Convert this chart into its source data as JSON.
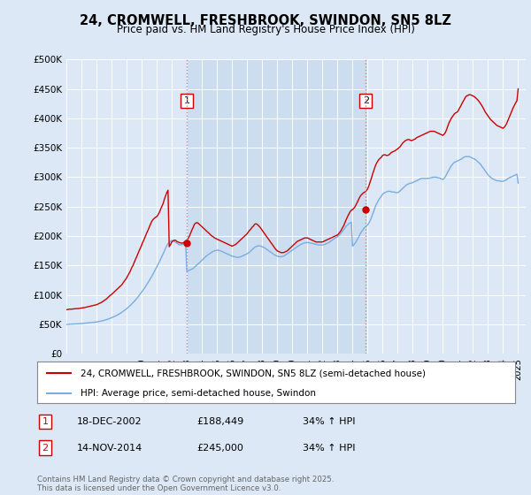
{
  "title": "24, CROMWELL, FRESHBROOK, SWINDON, SN5 8LZ",
  "subtitle": "Price paid vs. HM Land Registry's House Price Index (HPI)",
  "background_color": "#dce8f5",
  "plot_bg_color": "#dce8f5",
  "shade_color": "#ccddf0",
  "ylabel": "",
  "ylim": [
    0,
    500000
  ],
  "yticks": [
    0,
    50000,
    100000,
    150000,
    200000,
    250000,
    300000,
    350000,
    400000,
    450000,
    500000
  ],
  "ytick_labels": [
    "£0",
    "£50K",
    "£100K",
    "£150K",
    "£200K",
    "£250K",
    "£300K",
    "£350K",
    "£400K",
    "£450K",
    "£500K"
  ],
  "red_line_color": "#cc0000",
  "blue_line_color": "#7aade0",
  "vline_color": "#e08080",
  "marker1_year": 2003.0,
  "marker2_year": 2014.88,
  "marker1_price": 188449,
  "marker2_price": 245000,
  "legend_label_red": "24, CROMWELL, FRESHBROOK, SWINDON, SN5 8LZ (semi-detached house)",
  "legend_label_blue": "HPI: Average price, semi-detached house, Swindon",
  "annotation1": "1",
  "annotation2": "2",
  "footer_text": "Contains HM Land Registry data © Crown copyright and database right 2025.\nThis data is licensed under the Open Government Licence v3.0.",
  "table_row1": [
    "1",
    "18-DEC-2002",
    "£188,449",
    "34% ↑ HPI"
  ],
  "table_row2": [
    "2",
    "14-NOV-2014",
    "£245,000",
    "34% ↑ HPI"
  ],
  "red_x": [
    1995.0,
    1995.08,
    1995.17,
    1995.25,
    1995.33,
    1995.42,
    1995.5,
    1995.58,
    1995.67,
    1995.75,
    1995.83,
    1995.92,
    1996.0,
    1996.08,
    1996.17,
    1996.25,
    1996.33,
    1996.42,
    1996.5,
    1996.58,
    1996.67,
    1996.75,
    1996.83,
    1996.92,
    1997.0,
    1997.08,
    1997.17,
    1997.25,
    1997.33,
    1997.42,
    1997.5,
    1997.58,
    1997.67,
    1997.75,
    1997.83,
    1997.92,
    1998.0,
    1998.08,
    1998.17,
    1998.25,
    1998.33,
    1998.42,
    1998.5,
    1998.58,
    1998.67,
    1998.75,
    1998.83,
    1998.92,
    1999.0,
    1999.08,
    1999.17,
    1999.25,
    1999.33,
    1999.42,
    1999.5,
    1999.58,
    1999.67,
    1999.75,
    1999.83,
    1999.92,
    2000.0,
    2000.08,
    2000.17,
    2000.25,
    2000.33,
    2000.42,
    2000.5,
    2000.58,
    2000.67,
    2000.75,
    2000.83,
    2000.92,
    2001.0,
    2001.08,
    2001.17,
    2001.25,
    2001.33,
    2001.42,
    2001.5,
    2001.58,
    2001.67,
    2001.75,
    2001.83,
    2001.92,
    2002.0,
    2002.08,
    2002.17,
    2002.25,
    2002.33,
    2002.42,
    2002.5,
    2002.58,
    2002.67,
    2002.75,
    2002.83,
    2002.92,
    2003.0,
    2003.08,
    2003.17,
    2003.25,
    2003.33,
    2003.42,
    2003.5,
    2003.58,
    2003.67,
    2003.75,
    2003.83,
    2003.92,
    2004.0,
    2004.08,
    2004.17,
    2004.25,
    2004.33,
    2004.42,
    2004.5,
    2004.58,
    2004.67,
    2004.75,
    2004.83,
    2004.92,
    2005.0,
    2005.08,
    2005.17,
    2005.25,
    2005.33,
    2005.42,
    2005.5,
    2005.58,
    2005.67,
    2005.75,
    2005.83,
    2005.92,
    2006.0,
    2006.08,
    2006.17,
    2006.25,
    2006.33,
    2006.42,
    2006.5,
    2006.58,
    2006.67,
    2006.75,
    2006.83,
    2006.92,
    2007.0,
    2007.08,
    2007.17,
    2007.25,
    2007.33,
    2007.42,
    2007.5,
    2007.58,
    2007.67,
    2007.75,
    2007.83,
    2007.92,
    2008.0,
    2008.08,
    2008.17,
    2008.25,
    2008.33,
    2008.42,
    2008.5,
    2008.58,
    2008.67,
    2008.75,
    2008.83,
    2008.92,
    2009.0,
    2009.08,
    2009.17,
    2009.25,
    2009.33,
    2009.42,
    2009.5,
    2009.58,
    2009.67,
    2009.75,
    2009.83,
    2009.92,
    2010.0,
    2010.08,
    2010.17,
    2010.25,
    2010.33,
    2010.42,
    2010.5,
    2010.58,
    2010.67,
    2010.75,
    2010.83,
    2010.92,
    2011.0,
    2011.08,
    2011.17,
    2011.25,
    2011.33,
    2011.42,
    2011.5,
    2011.58,
    2011.67,
    2011.75,
    2011.83,
    2011.92,
    2012.0,
    2012.08,
    2012.17,
    2012.25,
    2012.33,
    2012.42,
    2012.5,
    2012.58,
    2012.67,
    2012.75,
    2012.83,
    2012.92,
    2013.0,
    2013.08,
    2013.17,
    2013.25,
    2013.33,
    2013.42,
    2013.5,
    2013.58,
    2013.67,
    2013.75,
    2013.83,
    2013.92,
    2014.0,
    2014.08,
    2014.17,
    2014.25,
    2014.33,
    2014.42,
    2014.5,
    2014.58,
    2014.67,
    2014.75,
    2014.83,
    2014.92,
    2015.0,
    2015.08,
    2015.17,
    2015.25,
    2015.33,
    2015.42,
    2015.5,
    2015.58,
    2015.67,
    2015.75,
    2015.83,
    2015.92,
    2016.0,
    2016.08,
    2016.17,
    2016.25,
    2016.33,
    2016.42,
    2016.5,
    2016.58,
    2016.67,
    2016.75,
    2016.83,
    2016.92,
    2017.0,
    2017.08,
    2017.17,
    2017.25,
    2017.33,
    2017.42,
    2017.5,
    2017.58,
    2017.67,
    2017.75,
    2017.83,
    2017.92,
    2018.0,
    2018.08,
    2018.17,
    2018.25,
    2018.33,
    2018.42,
    2018.5,
    2018.58,
    2018.67,
    2018.75,
    2018.83,
    2018.92,
    2019.0,
    2019.08,
    2019.17,
    2019.25,
    2019.33,
    2019.42,
    2019.5,
    2019.58,
    2019.67,
    2019.75,
    2019.83,
    2019.92,
    2020.0,
    2020.08,
    2020.17,
    2020.25,
    2020.33,
    2020.42,
    2020.5,
    2020.58,
    2020.67,
    2020.75,
    2020.83,
    2020.92,
    2021.0,
    2021.08,
    2021.17,
    2021.25,
    2021.33,
    2021.42,
    2021.5,
    2021.58,
    2021.67,
    2021.75,
    2021.83,
    2021.92,
    2022.0,
    2022.08,
    2022.17,
    2022.25,
    2022.33,
    2022.42,
    2022.5,
    2022.58,
    2022.67,
    2022.75,
    2022.83,
    2022.92,
    2023.0,
    2023.08,
    2023.17,
    2023.25,
    2023.33,
    2023.42,
    2023.5,
    2023.58,
    2023.67,
    2023.75,
    2023.83,
    2023.92,
    2024.0,
    2024.08,
    2024.17,
    2024.25,
    2024.33,
    2024.42,
    2024.5,
    2024.58,
    2024.67,
    2024.75,
    2024.83,
    2024.92,
    2025.0
  ],
  "red_y": [
    75000,
    75500,
    75800,
    76000,
    76000,
    76200,
    76500,
    76800,
    77000,
    77000,
    77200,
    77500,
    78000,
    78200,
    78500,
    79000,
    79500,
    80000,
    80500,
    81000,
    81500,
    82000,
    82500,
    83000,
    83500,
    84500,
    85500,
    86500,
    87500,
    89000,
    90500,
    92000,
    93500,
    95500,
    97500,
    99500,
    101000,
    103000,
    105000,
    107000,
    109000,
    111000,
    113000,
    115000,
    117000,
    120000,
    123000,
    126000,
    129000,
    133000,
    137000,
    141000,
    146000,
    150000,
    155000,
    160000,
    165000,
    170000,
    175000,
    180000,
    185000,
    190000,
    195000,
    200000,
    205000,
    210000,
    215000,
    220000,
    225000,
    228000,
    230000,
    232000,
    233000,
    236000,
    240000,
    245000,
    250000,
    255000,
    262000,
    268000,
    274000,
    278000,
    182000,
    186000,
    190000,
    192000,
    193000,
    193000,
    191000,
    190000,
    189000,
    188449,
    188000,
    188500,
    190000,
    192000,
    193000,
    196000,
    200000,
    205000,
    210000,
    215000,
    220000,
    222000,
    223000,
    222000,
    220000,
    218000,
    216000,
    214000,
    212000,
    210000,
    208000,
    206000,
    204000,
    202000,
    200000,
    199000,
    197000,
    196000,
    195000,
    194000,
    193000,
    192000,
    191000,
    190000,
    189000,
    188000,
    187000,
    186000,
    185000,
    184000,
    183000,
    184000,
    185000,
    186000,
    188000,
    190000,
    192000,
    194000,
    196000,
    198000,
    200000,
    202000,
    204000,
    207000,
    210000,
    212000,
    215000,
    217000,
    220000,
    221000,
    220000,
    218000,
    216000,
    213000,
    210000,
    207000,
    204000,
    201000,
    198000,
    195000,
    192000,
    189000,
    186000,
    183000,
    180000,
    177000,
    175000,
    174000,
    173000,
    172000,
    172000,
    172000,
    173000,
    174000,
    175000,
    177000,
    179000,
    181000,
    183000,
    185000,
    187000,
    189000,
    191000,
    192000,
    193000,
    194000,
    195000,
    196000,
    197000,
    197000,
    197000,
    196000,
    195000,
    194000,
    193000,
    192000,
    191000,
    190000,
    190000,
    190000,
    190000,
    190000,
    190000,
    191000,
    192000,
    193000,
    194000,
    195000,
    196000,
    197000,
    198000,
    199000,
    200000,
    201000,
    202000,
    204000,
    207000,
    210000,
    214000,
    218000,
    223000,
    228000,
    233000,
    237000,
    241000,
    244000,
    245000,
    247000,
    250000,
    254000,
    258000,
    263000,
    267000,
    270000,
    272000,
    274000,
    275000,
    277000,
    280000,
    285000,
    292000,
    298000,
    305000,
    312000,
    318000,
    323000,
    327000,
    330000,
    332000,
    334000,
    337000,
    338000,
    338000,
    337000,
    337000,
    338000,
    340000,
    342000,
    343000,
    344000,
    345000,
    347000,
    348000,
    350000,
    352000,
    355000,
    358000,
    360000,
    362000,
    363000,
    364000,
    364000,
    363000,
    362000,
    363000,
    364000,
    365000,
    367000,
    368000,
    369000,
    370000,
    371000,
    372000,
    373000,
    374000,
    375000,
    376000,
    377000,
    378000,
    378000,
    378000,
    378000,
    377000,
    376000,
    375000,
    374000,
    373000,
    372000,
    371000,
    373000,
    376000,
    381000,
    387000,
    393000,
    397000,
    401000,
    404000,
    407000,
    409000,
    410000,
    412000,
    416000,
    420000,
    424000,
    428000,
    432000,
    436000,
    438000,
    439000,
    440000,
    440000,
    439000,
    438000,
    437000,
    435000,
    433000,
    431000,
    428000,
    425000,
    422000,
    418000,
    414000,
    410000,
    407000,
    404000,
    401000,
    398000,
    396000,
    394000,
    392000,
    390000,
    388000,
    387000,
    386000,
    385000,
    384000,
    383000,
    385000,
    388000,
    392000,
    397000,
    403000,
    408000,
    413000,
    418000,
    422000,
    426000,
    430000,
    450000
  ],
  "blue_y": [
    50000,
    50200,
    50400,
    50500,
    50600,
    50700,
    50800,
    50900,
    51000,
    51100,
    51200,
    51400,
    51600,
    51800,
    52000,
    52200,
    52400,
    52600,
    52800,
    53000,
    53200,
    53400,
    53600,
    53900,
    54200,
    54600,
    55000,
    55400,
    55900,
    56400,
    57000,
    57600,
    58300,
    59000,
    59800,
    60600,
    61500,
    62400,
    63300,
    64300,
    65400,
    66500,
    67700,
    69000,
    70400,
    71900,
    73400,
    75000,
    76700,
    78500,
    80400,
    82400,
    84500,
    86700,
    89000,
    91400,
    93900,
    96500,
    99200,
    102000,
    104900,
    107900,
    111000,
    114200,
    117500,
    120900,
    124400,
    128000,
    131700,
    135500,
    139400,
    143400,
    147500,
    151700,
    156000,
    160400,
    164900,
    169500,
    174200,
    179000,
    183900,
    187000,
    189500,
    191500,
    192500,
    192000,
    191000,
    189500,
    188000,
    186500,
    185500,
    185000,
    185500,
    186000,
    187000,
    188000,
    140000,
    141000,
    142000,
    143000,
    144000,
    145000,
    147000,
    149000,
    151000,
    153000,
    155000,
    157000,
    159000,
    161000,
    163000,
    165000,
    167000,
    168500,
    170000,
    171500,
    173000,
    174000,
    175000,
    175500,
    176000,
    176000,
    175500,
    175000,
    174000,
    173000,
    172000,
    171000,
    170000,
    169000,
    168000,
    167000,
    166000,
    165500,
    165000,
    164500,
    164000,
    164000,
    164500,
    165000,
    166000,
    167000,
    168000,
    169000,
    170000,
    171500,
    173000,
    175000,
    177000,
    179000,
    181000,
    182000,
    183000,
    183500,
    183500,
    183000,
    182000,
    181000,
    180000,
    178500,
    177000,
    175500,
    174000,
    172500,
    171000,
    169500,
    168000,
    167000,
    166000,
    165500,
    165000,
    165000,
    165500,
    166000,
    167000,
    168500,
    170000,
    171500,
    173000,
    174500,
    176000,
    177500,
    179000,
    180500,
    182000,
    183500,
    185000,
    186000,
    187000,
    188000,
    188500,
    189000,
    189000,
    189000,
    188500,
    188000,
    187500,
    187000,
    186500,
    186000,
    185500,
    185000,
    185000,
    185000,
    185000,
    185500,
    186000,
    187000,
    188000,
    189000,
    190500,
    192000,
    193500,
    195000,
    196500,
    198000,
    199000,
    201000,
    203000,
    205500,
    208000,
    211000,
    214000,
    217000,
    219000,
    221000,
    222500,
    223500,
    183000,
    185000,
    188000,
    191000,
    195000,
    199000,
    203000,
    207000,
    210000,
    213000,
    215000,
    217000,
    219000,
    222000,
    226000,
    231000,
    237000,
    243000,
    249000,
    254000,
    258000,
    262000,
    265000,
    268000,
    271000,
    273000,
    274000,
    275000,
    276000,
    276000,
    276000,
    275000,
    275000,
    275000,
    274000,
    274000,
    274000,
    275000,
    277000,
    279000,
    281000,
    283000,
    285000,
    287000,
    288000,
    289000,
    290000,
    290000,
    291000,
    292000,
    293000,
    294000,
    295000,
    296000,
    297000,
    298000,
    298000,
    298000,
    298000,
    298000,
    298000,
    298000,
    299000,
    299000,
    300000,
    300000,
    300000,
    300000,
    299000,
    299000,
    298000,
    297000,
    296000,
    298000,
    301000,
    305000,
    309000,
    313000,
    317000,
    320000,
    323000,
    325000,
    326000,
    327000,
    328000,
    329000,
    330000,
    331000,
    333000,
    334000,
    335000,
    335000,
    335000,
    335000,
    334000,
    333000,
    332000,
    331000,
    330000,
    328000,
    326000,
    324000,
    322000,
    319000,
    316000,
    313000,
    310000,
    307000,
    304000,
    302000,
    300000,
    298000,
    297000,
    296000,
    295000,
    294000,
    294000,
    294000,
    293000,
    293000,
    293000,
    294000,
    295000,
    296000,
    298000,
    299000,
    300000,
    301000,
    302000,
    303000,
    304000,
    305000,
    290000
  ]
}
